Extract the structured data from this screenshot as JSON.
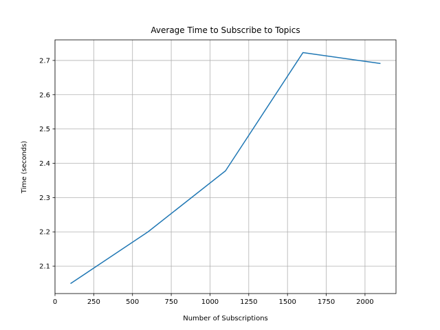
{
  "chart_data": {
    "type": "line",
    "title": "Average Time to Subscribe to Topics",
    "xlabel": "Number of Subscriptions",
    "ylabel": "Time (seconds)",
    "xlim": [
      0,
      2200
    ],
    "ylim": [
      2.02,
      2.76
    ],
    "xticks": [
      0,
      250,
      500,
      750,
      1000,
      1250,
      1500,
      1750,
      2000
    ],
    "yticks": [
      2.1,
      2.2,
      2.3,
      2.4,
      2.5,
      2.6,
      2.7
    ],
    "grid": true,
    "series": [
      {
        "color": "#1f77b4",
        "x": [
          100,
          600,
          1100,
          1600,
          2100
        ],
        "y": [
          2.049,
          2.2,
          2.378,
          2.723,
          2.691
        ]
      }
    ]
  }
}
